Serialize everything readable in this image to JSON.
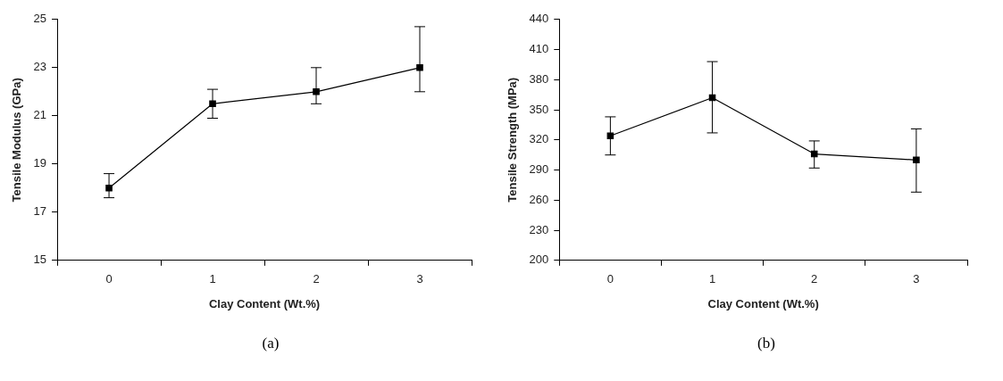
{
  "chart_data": [
    {
      "type": "line",
      "xlabel": "Clay Content (Wt.%)",
      "ylabel": "Tensile Modulus (GPa)",
      "categories": [
        "0",
        "1",
        "2",
        "3"
      ],
      "series": [
        {
          "color": "#000000",
          "values": [
            18.0,
            21.5,
            22.0,
            23.0
          ],
          "errors": [
            [
              17.6,
              18.6
            ],
            [
              20.9,
              22.1
            ],
            [
              21.5,
              23.0
            ],
            [
              22.0,
              24.7
            ]
          ]
        }
      ],
      "ylim": [
        15,
        25
      ],
      "yticks": [
        15,
        17,
        19,
        21,
        23,
        25
      ],
      "grid": false,
      "marker": "square",
      "line_style": "solid",
      "annotations": [
        "(a)"
      ]
    },
    {
      "type": "line",
      "xlabel": "Clay Content (Wt.%)",
      "ylabel": "Tensile Strength (MPa)",
      "categories": [
        "0",
        "1",
        "2",
        "3"
      ],
      "series": [
        {
          "color": "#000000",
          "values": [
            324,
            362,
            306,
            300
          ],
          "errors": [
            [
              305,
              343
            ],
            [
              327,
              398
            ],
            [
              292,
              319
            ],
            [
              268,
              331
            ]
          ]
        }
      ],
      "ylim": [
        200,
        440
      ],
      "yticks": [
        200,
        230,
        260,
        290,
        320,
        350,
        380,
        410,
        440
      ],
      "grid": false,
      "marker": "square",
      "line_style": "solid",
      "annotations": [
        "(b)"
      ]
    }
  ]
}
